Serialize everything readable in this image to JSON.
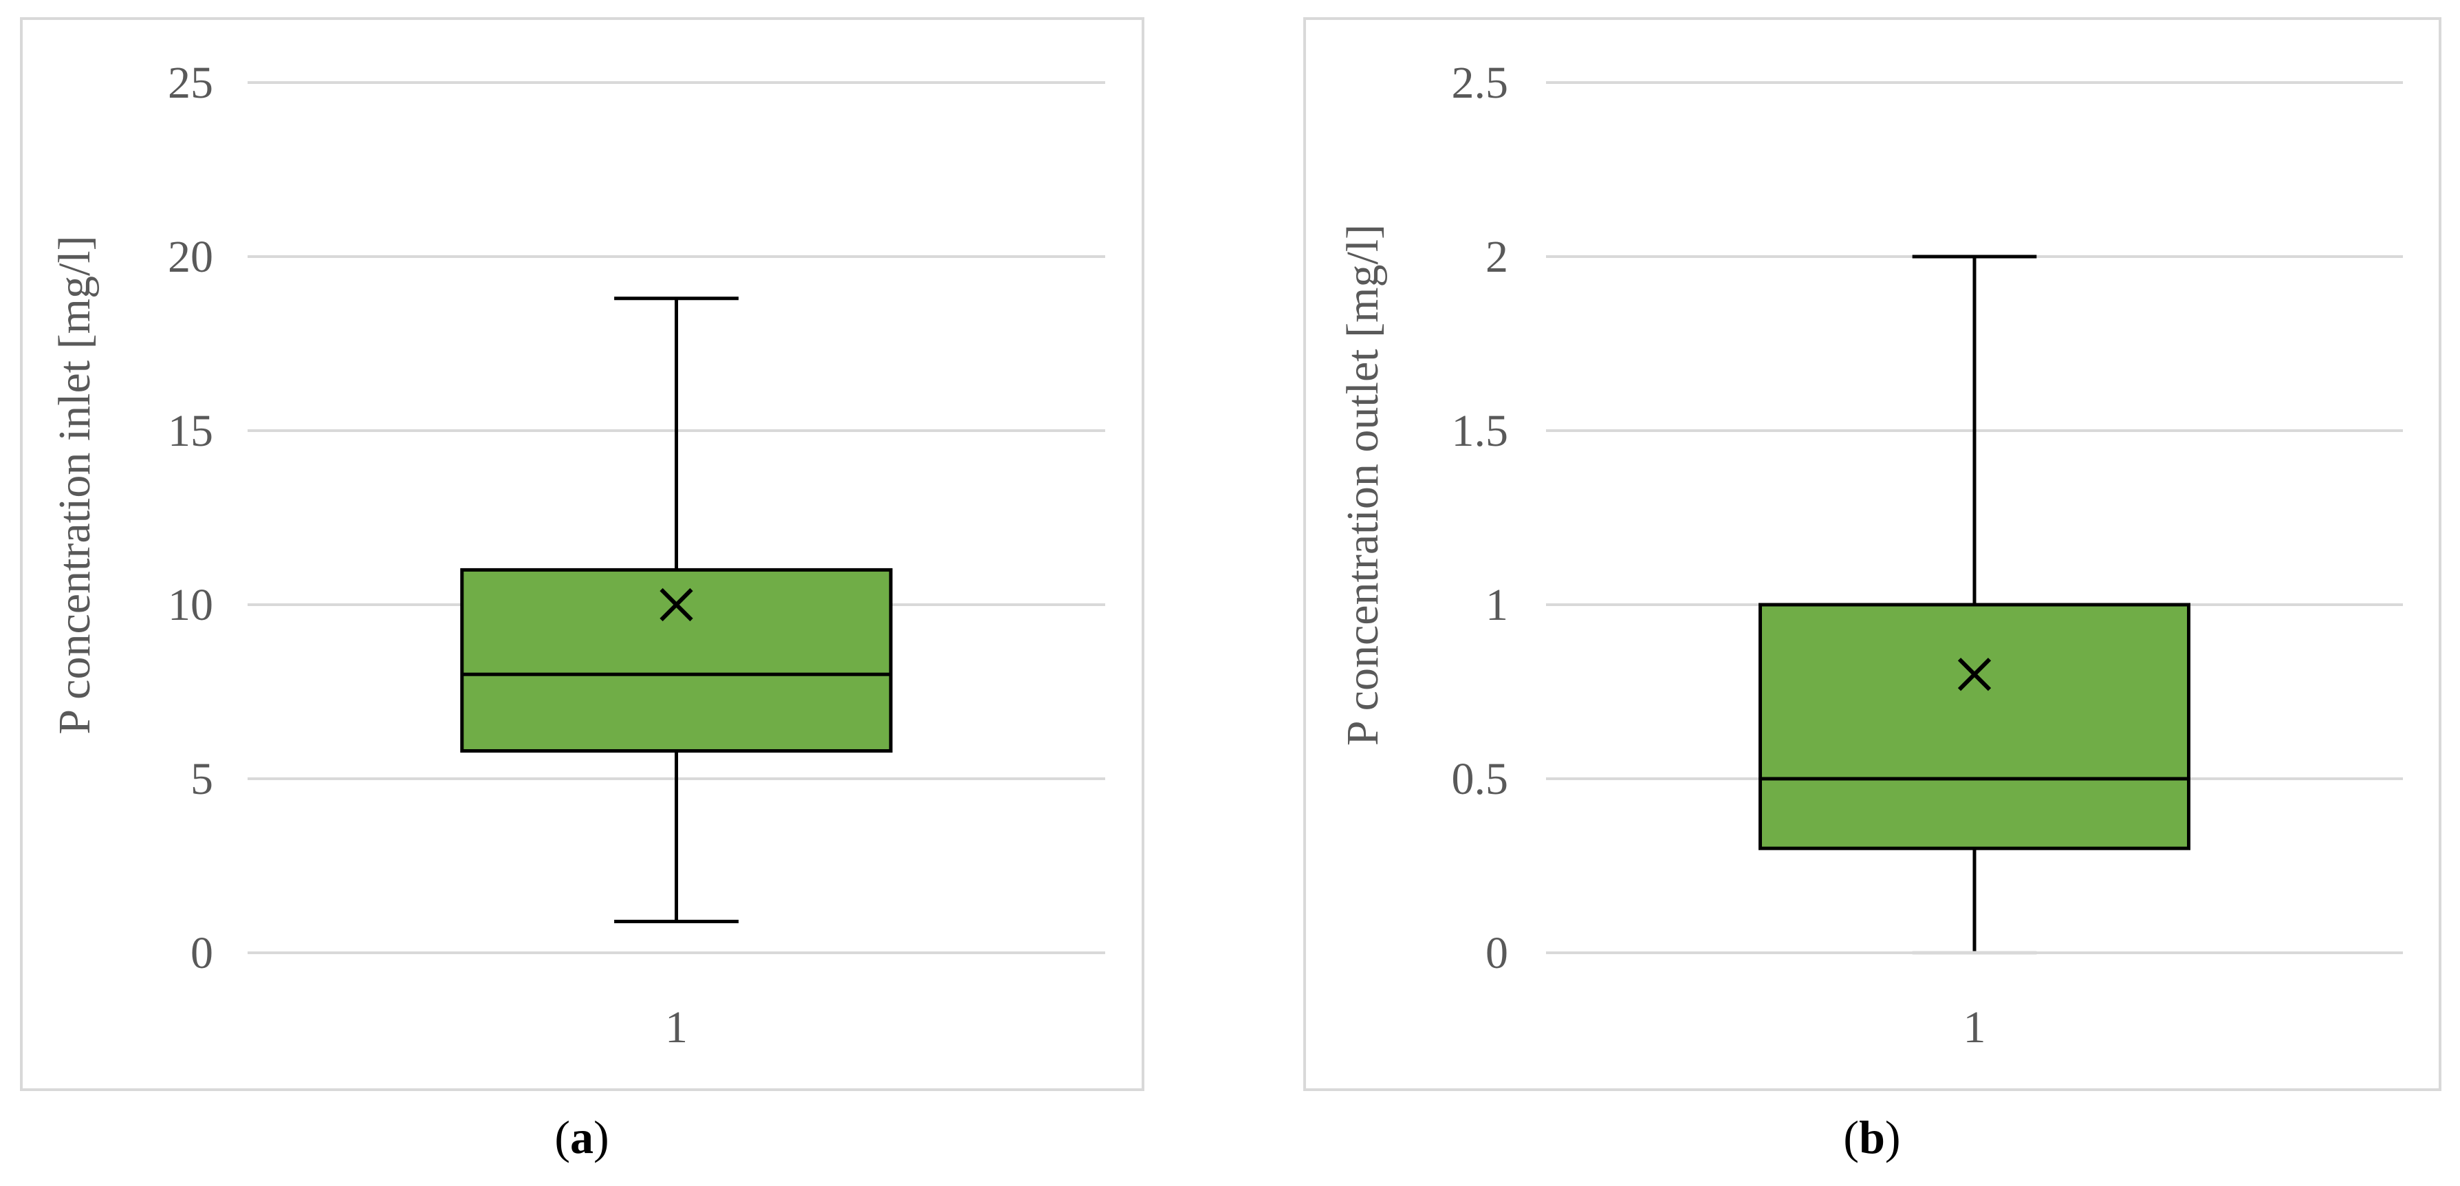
{
  "colors": {
    "box_fill": "#70AD47",
    "box_stroke": "#000000",
    "grid": "#D9D9D9",
    "frame": "#D9D9D9",
    "axis_text": "#595959"
  },
  "chart_data": [
    {
      "type": "box",
      "panel_label": "a",
      "ylabel": "P concentration inlet [mg/l]",
      "categories": [
        "1"
      ],
      "y_ticks": [
        "0",
        "5",
        "10",
        "15",
        "20",
        "25"
      ],
      "ylim": [
        0,
        25
      ],
      "grid": true,
      "legend": "none",
      "boxes": [
        {
          "category": "1",
          "min": 0.9,
          "q1": 5.8,
          "median": 8.0,
          "q3": 11.0,
          "max": 18.8,
          "mean": 10.0
        }
      ]
    },
    {
      "type": "box",
      "panel_label": "b",
      "ylabel": "P concentration outlet [mg/l]",
      "categories": [
        "1"
      ],
      "y_ticks": [
        "0",
        "0.5",
        "1",
        "1.5",
        "2",
        "2.5"
      ],
      "ylim": [
        0,
        2.5
      ],
      "grid": true,
      "legend": "none",
      "boxes": [
        {
          "category": "1",
          "min": 0.0,
          "q1": 0.3,
          "median": 0.5,
          "q3": 1.0,
          "max": 2.0,
          "mean": 0.8
        }
      ]
    }
  ]
}
